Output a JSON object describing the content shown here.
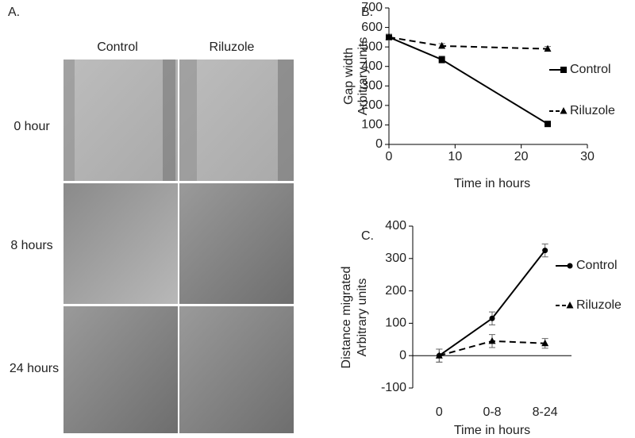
{
  "panel_a": {
    "label": "A.",
    "columns": [
      "Control",
      "Riluzole"
    ],
    "rows": [
      "0 hour",
      "8 hours",
      "24 hours"
    ]
  },
  "chart_data": [
    {
      "type": "line",
      "label": "B.",
      "y_label": [
        "Gap width",
        "Arbitrary units"
      ],
      "x_label": "Time in hours",
      "x": [
        0,
        8,
        24
      ],
      "xlim": [
        0,
        30
      ],
      "xticks": [
        0,
        10,
        20,
        30
      ],
      "ylim": [
        0,
        700
      ],
      "yticks": [
        0,
        100,
        200,
        300,
        400,
        500,
        600,
        700
      ],
      "series": [
        {
          "name": "Control",
          "color": "#000000",
          "line_style": "solid",
          "marker": "square",
          "values": [
            550,
            435,
            105
          ],
          "errors": [
            15,
            18,
            10
          ]
        },
        {
          "name": "Riluzole",
          "color": "#000000",
          "line_style": "dashed",
          "marker": "triangle",
          "values": [
            550,
            505,
            490
          ],
          "errors": [
            15,
            12,
            12
          ]
        }
      ]
    },
    {
      "type": "line",
      "label": "C.",
      "y_label": [
        "Distance migrated",
        "Arbitrary units"
      ],
      "x_label": "Time in hours",
      "categories": [
        "0",
        "0-8",
        "8-24"
      ],
      "ylim": [
        -100,
        400
      ],
      "yticks": [
        -100,
        0,
        100,
        200,
        300,
        400
      ],
      "series": [
        {
          "name": "Control",
          "color": "#000000",
          "line_style": "solid",
          "marker": "circle",
          "values": [
            0,
            115,
            325
          ],
          "errors": [
            20,
            20,
            20
          ]
        },
        {
          "name": "Riluzole",
          "color": "#000000",
          "line_style": "dashed",
          "marker": "triangle",
          "values": [
            0,
            45,
            38
          ],
          "errors": [
            20,
            20,
            15
          ]
        }
      ]
    }
  ]
}
